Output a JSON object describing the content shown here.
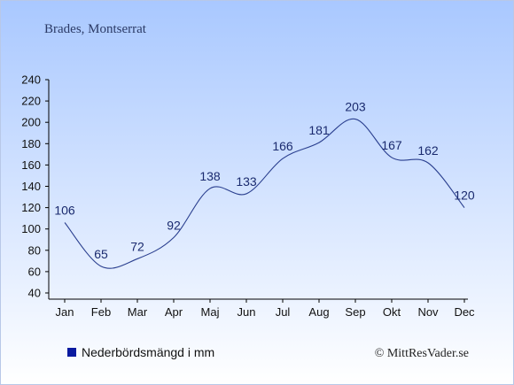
{
  "header": {
    "location": "Brades, Montserrat"
  },
  "footer": {
    "legend_label": "Nederbördsmängd i mm",
    "copyright": "© MittResVader.se"
  },
  "colors": {
    "background_top": "#a9c8ff",
    "background_bottom": "#ffffff",
    "series": "#2a3f8f",
    "legend_swatch": "#0a1aa0",
    "text": "#1a2a6e",
    "axis": "#000000"
  },
  "chart_data": {
    "type": "line",
    "title": "Brades, Montserrat",
    "categories": [
      "Jan",
      "Feb",
      "Mar",
      "Apr",
      "Maj",
      "Jun",
      "Jul",
      "Aug",
      "Sep",
      "Okt",
      "Nov",
      "Dec"
    ],
    "series": [
      {
        "name": "Nederbördsmängd i mm",
        "values": [
          106,
          65,
          72,
          92,
          138,
          133,
          166,
          181,
          203,
          167,
          162,
          120
        ]
      }
    ],
    "ylim": [
      40,
      240
    ],
    "yticks": [
      40,
      60,
      80,
      100,
      120,
      140,
      160,
      180,
      200,
      220,
      240
    ],
    "grid": false,
    "legend": "bottom-left"
  }
}
